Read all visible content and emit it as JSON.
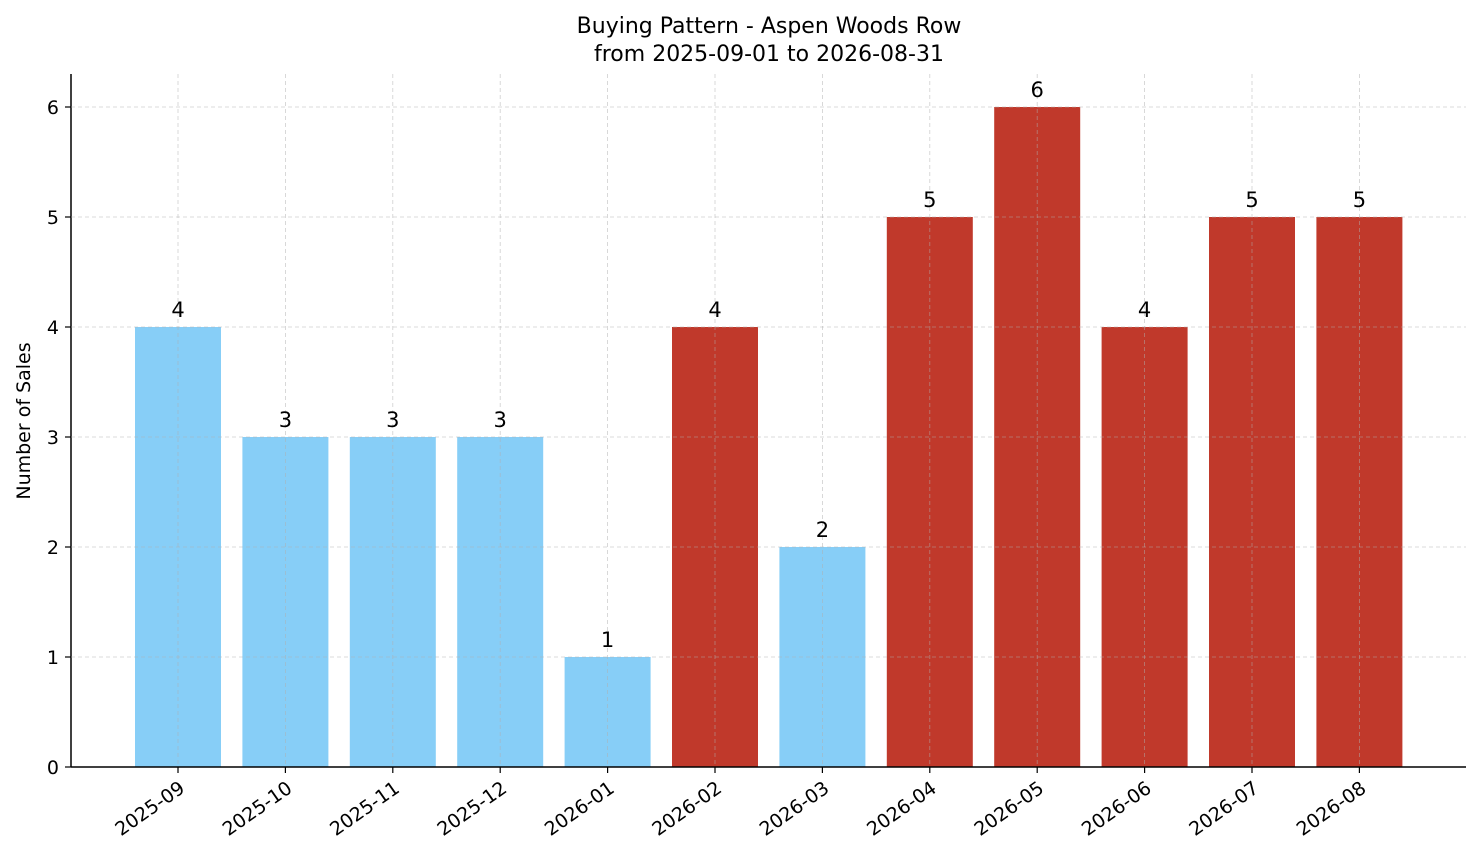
{
  "chart_data": {
    "type": "bar",
    "title": "Buying Pattern - Aspen Woods Row",
    "subtitle": "from 2025-09-01 to 2026-08-31",
    "xlabel": "",
    "ylabel": "Number of Sales",
    "categories": [
      "2025-09",
      "2025-10",
      "2025-11",
      "2025-12",
      "2026-01",
      "2026-02",
      "2026-03",
      "2026-04",
      "2026-05",
      "2026-06",
      "2026-07",
      "2026-08"
    ],
    "values": [
      4,
      3,
      3,
      3,
      1,
      4,
      2,
      5,
      6,
      4,
      5,
      5
    ],
    "bar_colors": [
      "#87CEF7",
      "#87CEF7",
      "#87CEF7",
      "#87CEF7",
      "#87CEF7",
      "#C0392B",
      "#87CEF7",
      "#C0392B",
      "#C0392B",
      "#C0392B",
      "#C0392B",
      "#C0392B"
    ],
    "ylim": [
      0,
      6.3
    ],
    "yticks": [
      0,
      1,
      2,
      3,
      4,
      5,
      6
    ],
    "grid": true,
    "legend": "none",
    "data_labels": true
  }
}
